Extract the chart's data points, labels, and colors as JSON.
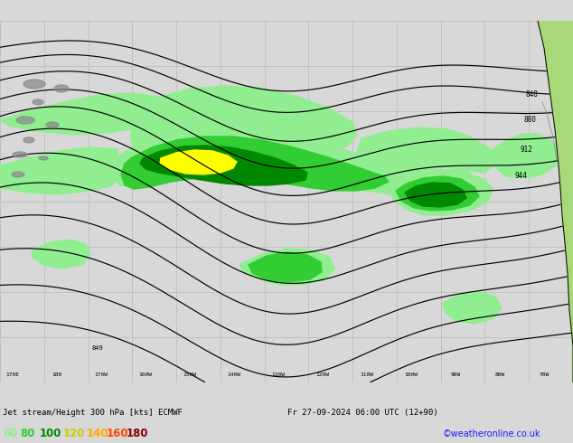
{
  "title_bottom": "Jet stream/Height 300 hPa [kts] ECMWF",
  "date_str": "Fr 27-09-2024 06:00 UTC (12+90)",
  "credit": "©weatheronline.co.uk",
  "legend_values": [
    60,
    80,
    100,
    120,
    140,
    160,
    180
  ],
  "legend_colors": [
    "#90ee90",
    "#32cd32",
    "#008800",
    "#cccc00",
    "#ffa500",
    "#ff4500",
    "#8b0000"
  ],
  "bg_color": "#d8d8d8",
  "map_bg": "#d8d8d8",
  "figsize": [
    6.34,
    4.9
  ],
  "dpi": 100,
  "light_green": "#90ee90",
  "med_green": "#32cd32",
  "dark_green": "#008800",
  "yellow": "#ffff00",
  "land_color": "#a8d878",
  "coast_gray": "#888888",
  "grid_color": "#b8b8b8",
  "contour_color": "#000000"
}
